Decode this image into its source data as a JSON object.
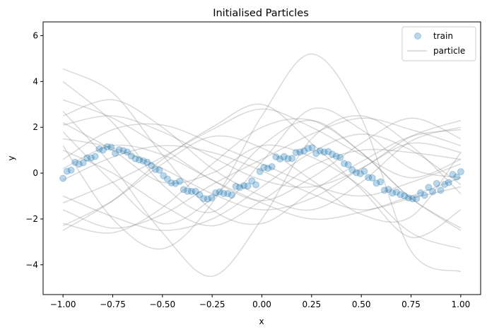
{
  "chart_data": {
    "type": "scatter",
    "title": "Initialised Particles",
    "xlabel": "x",
    "ylabel": "y",
    "xlim": [
      -1.1,
      1.1
    ],
    "ylim": [
      -5.3,
      6.6
    ],
    "xticks": [
      -1.0,
      -0.75,
      -0.5,
      -0.25,
      0.0,
      0.25,
      0.5,
      0.75,
      1.0
    ],
    "xtick_labels": [
      "−1.00",
      "−0.75",
      "−0.50",
      "−0.25",
      "0.00",
      "0.25",
      "0.50",
      "0.75",
      "1.00"
    ],
    "yticks": [
      -4,
      -2,
      0,
      2,
      4,
      6
    ],
    "ytick_labels": [
      "−4",
      "−2",
      "0",
      "2",
      "4",
      "6"
    ],
    "grid": false,
    "legend": {
      "placement": "top-right",
      "entries": [
        {
          "label": "train",
          "marker": "circle",
          "color": "#1f77b4",
          "alpha": 0.3
        },
        {
          "label": "particle",
          "marker": "line",
          "color": "#808080",
          "alpha": 0.3
        }
      ]
    },
    "train": {
      "name": "train",
      "n": 100,
      "x_range": [
        -1.0,
        1.0
      ],
      "y": [
        -0.23,
        0.08,
        0.13,
        0.47,
        0.39,
        0.45,
        0.66,
        0.66,
        0.73,
        1.05,
        1.01,
        1.15,
        1.13,
        0.87,
        1.02,
        0.98,
        0.92,
        0.75,
        0.63,
        0.58,
        0.53,
        0.47,
        0.33,
        0.16,
        0.13,
        -0.11,
        -0.26,
        -0.43,
        -0.45,
        -0.36,
        -0.72,
        -0.79,
        -0.8,
        -0.8,
        -0.94,
        -1.11,
        -1.13,
        -1.08,
        -0.86,
        -0.82,
        -0.89,
        -0.89,
        -0.96,
        -0.58,
        -0.62,
        -0.55,
        -0.56,
        -0.34,
        -0.51,
        0.07,
        0.25,
        0.21,
        0.28,
        0.71,
        0.62,
        0.72,
        0.63,
        0.64,
        0.9,
        0.92,
        0.97,
        1.08,
        1.11,
        0.86,
        0.97,
        0.92,
        0.94,
        0.83,
        0.74,
        0.68,
        0.42,
        0.37,
        0.14,
        0.02,
        -0.02,
        0.08,
        -0.19,
        -0.21,
        -0.44,
        -0.38,
        -0.75,
        -0.71,
        -0.87,
        -0.83,
        -0.94,
        -0.99,
        -1.08,
        -1.12,
        -1.11,
        -0.86,
        -0.97,
        -0.62,
        -0.81,
        -0.45,
        -0.75,
        -0.49,
        -0.41,
        -0.06,
        -0.17,
        0.06
      ]
    },
    "particles": {
      "name": "particle",
      "count": 20,
      "x_range": [
        -1.0,
        1.0
      ],
      "samples_per_curve": 9,
      "y": [
        [
          4.55,
          3.5,
          0.8,
          -1.6,
          -2.2,
          -0.8,
          0.5,
          1.6,
          1.9
        ],
        [
          4.0,
          2.2,
          -0.5,
          -1.7,
          0.5,
          2.8,
          1.9,
          0.2,
          -0.2
        ],
        [
          2.7,
          0.3,
          -2.6,
          -4.5,
          -2.0,
          1.5,
          2.5,
          1.2,
          -0.9
        ],
        [
          2.5,
          3.2,
          2.0,
          0.2,
          -1.0,
          -1.6,
          -0.4,
          1.4,
          2.0
        ],
        [
          2.2,
          1.0,
          -0.4,
          0.0,
          1.2,
          0.7,
          -0.6,
          -2.6,
          -3.3
        ],
        [
          2.1,
          2.5,
          1.8,
          0.7,
          -0.3,
          -0.6,
          0.2,
          1.6,
          2.3
        ],
        [
          1.8,
          -0.4,
          -2.2,
          -1.1,
          1.2,
          2.3,
          0.9,
          -1.1,
          -2.5
        ],
        [
          1.2,
          -2.0,
          -3.3,
          -1.3,
          2.5,
          5.2,
          2.4,
          -3.4,
          -4.3
        ],
        [
          1.0,
          0.0,
          -1.4,
          -2.3,
          -1.2,
          0.3,
          1.0,
          0.9,
          0.6
        ],
        [
          0.6,
          1.9,
          2.1,
          1.3,
          0.4,
          -0.5,
          -1.0,
          -0.4,
          0.4
        ],
        [
          0.2,
          1.2,
          0.8,
          -0.3,
          -1.3,
          -2.0,
          -1.7,
          -1.0,
          -0.2
        ],
        [
          -0.3,
          0.7,
          1.2,
          0.9,
          0.1,
          -0.9,
          -1.6,
          -1.1,
          -0.6
        ],
        [
          -1.3,
          -0.4,
          0.7,
          1.9,
          2.8,
          2.0,
          0.8,
          -0.2,
          0.6
        ],
        [
          -1.6,
          -2.4,
          -1.8,
          -0.5,
          0.6,
          1.7,
          2.4,
          1.9,
          1.2
        ],
        [
          -2.2,
          -2.6,
          -1.5,
          0.4,
          2.0,
          2.3,
          0.9,
          -1.1,
          -2.4
        ],
        [
          -2.3,
          -1.2,
          0.4,
          1.6,
          1.1,
          -0.3,
          -1.8,
          -1.9,
          0.9
        ],
        [
          -2.5,
          -1.2,
          0.6,
          2.0,
          3.0,
          1.3,
          -0.7,
          -2.8,
          -1.6
        ],
        [
          3.2,
          2.4,
          1.1,
          -0.3,
          -1.2,
          -0.2,
          1.3,
          2.4,
          1.5
        ],
        [
          -1.0,
          -1.9,
          -2.5,
          -2.0,
          -0.6,
          0.9,
          1.7,
          1.0,
          -0.5
        ],
        [
          1.5,
          1.1,
          0.2,
          -0.9,
          -1.6,
          -1.1,
          0.2,
          1.3,
          0.9
        ]
      ]
    }
  }
}
